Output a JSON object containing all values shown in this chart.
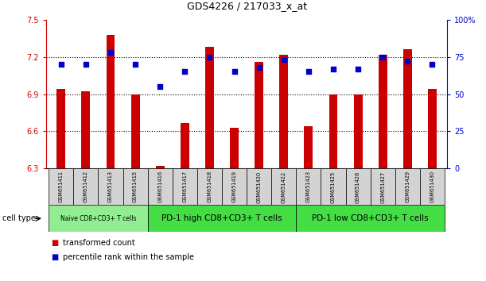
{
  "title": "GDS4226 / 217033_x_at",
  "samples": [
    "GSM651411",
    "GSM651412",
    "GSM651413",
    "GSM651415",
    "GSM651416",
    "GSM651417",
    "GSM651418",
    "GSM651419",
    "GSM651420",
    "GSM651422",
    "GSM651423",
    "GSM651425",
    "GSM651426",
    "GSM651427",
    "GSM651429",
    "GSM651430"
  ],
  "bar_values": [
    6.94,
    6.92,
    7.38,
    6.9,
    6.32,
    6.67,
    7.28,
    6.63,
    7.16,
    7.22,
    6.64,
    6.9,
    6.9,
    7.22,
    7.26,
    6.94
  ],
  "dot_values": [
    70,
    70,
    78,
    70,
    55,
    65,
    75,
    65,
    68,
    73,
    65,
    67,
    67,
    75,
    72,
    70
  ],
  "ylim_left": [
    6.3,
    7.5
  ],
  "ylim_right": [
    0,
    100
  ],
  "yticks_left": [
    6.3,
    6.6,
    6.9,
    7.2,
    7.5
  ],
  "yticks_right": [
    0,
    25,
    50,
    75,
    100
  ],
  "ytick_labels_right": [
    "0",
    "25",
    "50",
    "75",
    "100%"
  ],
  "bar_color": "#cc0000",
  "dot_color": "#0000cc",
  "tick_color_left": "#cc0000",
  "tick_color_right": "#0000cc",
  "groups": [
    {
      "label": "Naive CD8+CD3+ T cells",
      "start": 0,
      "end": 3
    },
    {
      "label": "PD-1 high CD8+CD3+ T cells",
      "start": 4,
      "end": 9
    },
    {
      "label": "PD-1 low CD8+CD3+ T cells",
      "start": 10,
      "end": 15
    }
  ],
  "group_colors": [
    "#90ee90",
    "#44dd44",
    "#44dd44"
  ],
  "cell_type_label": "cell type",
  "legend_bar_label": "transformed count",
  "legend_dot_label": "percentile rank within the sample",
  "sample_bg_color": "#d3d3d3",
  "grid_yticks": [
    6.6,
    6.9,
    7.2
  ]
}
